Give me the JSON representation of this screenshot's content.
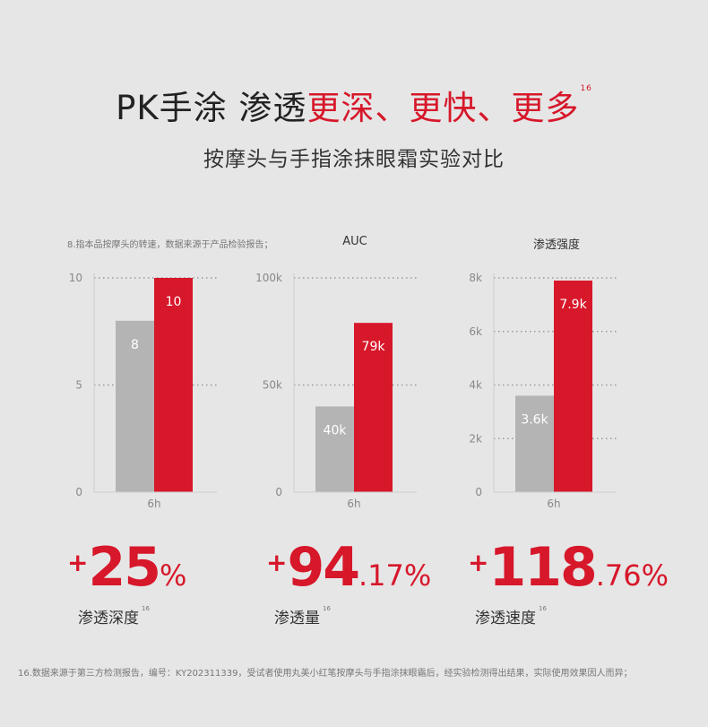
{
  "title": {
    "part1": "PK手涂 渗透",
    "part2": "更深、更快、更多",
    "sup": "16"
  },
  "subtitle": "按摩头与手指涂抹眼霜实验对比",
  "note_top": "8.指本品按摩头的转速，数据来源于产品检验报告；",
  "colors": {
    "red": "#d7172a",
    "gray": "#b4b4b4"
  },
  "chart_data": [
    {
      "type": "bar",
      "title": "",
      "categories": [
        "6h"
      ],
      "series": [
        {
          "values": [
            8
          ]
        },
        {
          "values": [
            10
          ]
        }
      ],
      "value_labels": [
        "8",
        "10"
      ],
      "yticks": [
        "0",
        "5",
        "10"
      ],
      "ytick_values": [
        0,
        5,
        10
      ],
      "ylim": [
        0,
        10
      ]
    },
    {
      "type": "bar",
      "title": "AUC",
      "categories": [
        "6h"
      ],
      "series": [
        {
          "values": [
            40000
          ]
        },
        {
          "values": [
            79000
          ]
        }
      ],
      "value_labels": [
        "40k",
        "79k"
      ],
      "yticks": [
        "0",
        "50k",
        "100k"
      ],
      "ytick_values": [
        0,
        50000,
        100000
      ],
      "ylim": [
        0,
        100000
      ]
    },
    {
      "type": "bar",
      "title": "渗透强度",
      "categories": [
        "6h"
      ],
      "series": [
        {
          "values": [
            3600
          ]
        },
        {
          "values": [
            7900
          ]
        }
      ],
      "value_labels": [
        "3.6k",
        "7.9k"
      ],
      "yticks": [
        "0",
        "2k",
        "4k",
        "6k",
        "8k"
      ],
      "ytick_values": [
        0,
        2000,
        4000,
        6000,
        8000
      ],
      "ylim": [
        0,
        8000
      ]
    }
  ],
  "stats": [
    {
      "plus": "+",
      "big": "25",
      "small": "%",
      "label": "渗透深度",
      "sup": "16"
    },
    {
      "plus": "+",
      "big": "94",
      "small": ".17%",
      "label": "渗透量",
      "sup": "16"
    },
    {
      "plus": "+",
      "big": "118",
      "small": ".76%",
      "label": "渗透速度",
      "sup": "16"
    }
  ],
  "footnote": "16.数据来源于第三方检测报告，编号：KY202311339，受试者使用丸美小红笔按摩头与手指涂抹眼霜后，经实验检测得出结果，实际使用效果因人而异；"
}
